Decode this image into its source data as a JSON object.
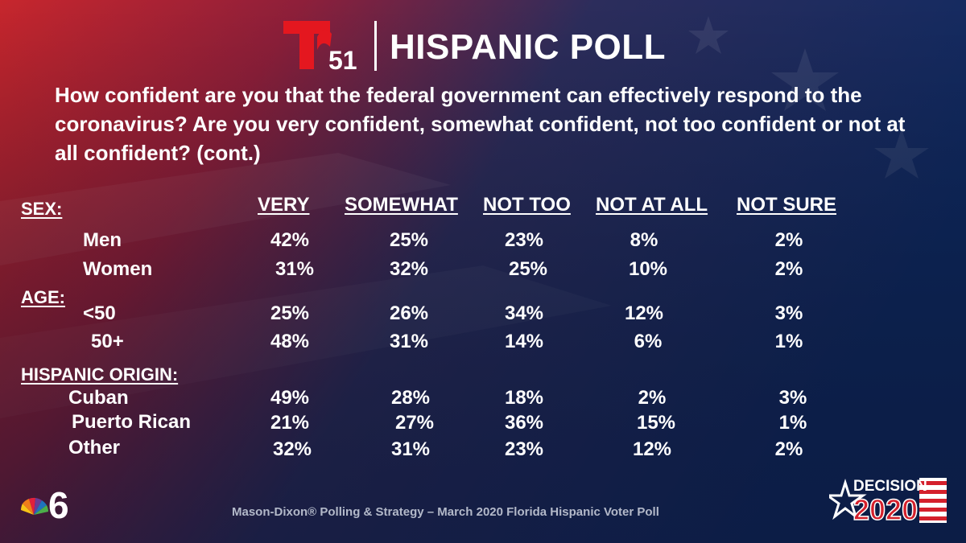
{
  "header": {
    "brand_number": "51",
    "title": "HISPANIC POLL"
  },
  "question": "How confident are you that the federal government can effectively respond to the coronavirus?  Are you very confident, somewhat confident, not too confident or not at all confident?  (cont.)",
  "chart_data": {
    "type": "table",
    "columns": [
      "VERY",
      "SOMEWHAT",
      "NOT TOO",
      "NOT AT ALL",
      "NOT SURE"
    ],
    "groups": [
      {
        "label": "SEX:",
        "rows": [
          {
            "label": "Men",
            "values": [
              "42%",
              "25%",
              "23%",
              "8%",
              "2%"
            ]
          },
          {
            "label": "Women",
            "values": [
              "31%",
              "32%",
              "25%",
              "10%",
              "2%"
            ]
          }
        ]
      },
      {
        "label": "AGE:",
        "rows": [
          {
            "label": "<50",
            "values": [
              "25%",
              "26%",
              "34%",
              "12%",
              "3%"
            ]
          },
          {
            "label": "50+",
            "values": [
              "48%",
              "31%",
              "14%",
              "6%",
              "1%"
            ]
          }
        ]
      },
      {
        "label": "HISPANIC ORIGIN:",
        "rows": [
          {
            "label": "Cuban",
            "values": [
              "49%",
              "28%",
              "18%",
              "2%",
              "3%"
            ]
          },
          {
            "label": "Puerto Rican",
            "values": [
              "21%",
              "27%",
              "36%",
              "15%",
              "1%"
            ]
          },
          {
            "label": "Other",
            "values": [
              "32%",
              "31%",
              "23%",
              "12%",
              "2%"
            ]
          }
        ]
      }
    ]
  },
  "footer": {
    "source": "Mason-Dixon® Polling & Strategy – March 2020 Florida Hispanic Voter Poll",
    "decision_word": "DECISION",
    "decision_year": "2020"
  },
  "colors": {
    "telemundo_red": "#e4171f",
    "bg_red": "#b0222a",
    "bg_navy": "#14275a",
    "source_text": "#b3b9c9"
  }
}
